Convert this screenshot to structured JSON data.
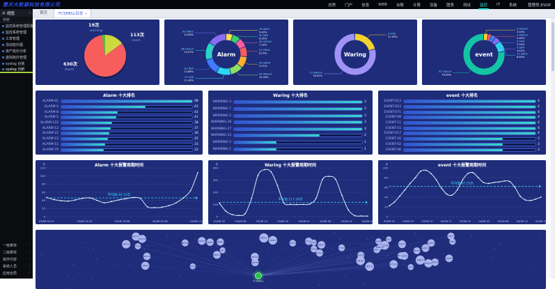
{
  "brand": {
    "logo": "慧天大数据科技有限公司"
  },
  "topnav": {
    "items": [
      "态势",
      "门户",
      "信息",
      "WEB",
      "台账",
      "计算",
      "设备",
      "图表",
      "测试",
      "监控",
      "IT",
      "系统"
    ],
    "active_index": 9,
    "user": "管理员:ESOP"
  },
  "sidebar": {
    "header_label": "视图",
    "search_label": "搜索",
    "items": [
      {
        "label": "监控系统管理配置",
        "active": false
      },
      {
        "label": "监控系统管理",
        "active": false
      },
      {
        "label": "工单管理",
        "active": false
      },
      {
        "label": "活动拓扑图",
        "active": false
      },
      {
        "label": "资产拓扑分析",
        "active": false
      },
      {
        "label": "虚拟拓扑管理",
        "active": false
      },
      {
        "label": "syslog 台账",
        "active": false
      },
      {
        "label": "syslog 分析",
        "active": true
      }
    ],
    "bottom_items": [
      "一级菜单",
      "二级菜单",
      "操作内容",
      "系统人员",
      "应用全局"
    ]
  },
  "tabs": [
    {
      "label": "首页",
      "active": false
    },
    {
      "label": "FCSHELL日志",
      "active": true
    }
  ],
  "chart_data": [
    {
      "type": "pie",
      "title": "日志类型占比",
      "series": [
        {
          "name": "event",
          "label": "113次",
          "value": 113,
          "color": "#ccd93f"
        },
        {
          "name": "Alarm",
          "label": "630次",
          "value": 630,
          "color": "#f85d5d"
        },
        {
          "name": "warning",
          "label": "19次",
          "value": 19,
          "color": "#58c13a"
        }
      ]
    },
    {
      "type": "donut",
      "center_label": "Alarm",
      "segments": [
        {
          "value": 34,
          "name": "AD01",
          "pct": "5.40%",
          "color": "#ffe14d"
        },
        {
          "value": 40,
          "name": "DB2",
          "pct": "6.35%",
          "color": "#37d06a"
        },
        {
          "value": 46,
          "name": "UAS16",
          "pct": "7.30%",
          "color": "#ff5fa2"
        },
        {
          "value": 52,
          "name": "FW01",
          "pct": "8.25%",
          "color": "#f85d5d"
        },
        {
          "value": 58,
          "name": "SW06",
          "pct": "9.21%",
          "color": "#ffb12e"
        },
        {
          "value": 64,
          "name": "WAS10",
          "pct": "10.16%",
          "color": "#8ee05e"
        },
        {
          "value": 72,
          "name": "OA8",
          "pct": "11.43%",
          "color": "#2bd7ee"
        },
        {
          "value": 81,
          "name": "DB4",
          "pct": "12.86%",
          "color": "#3f7bff"
        },
        {
          "value": 88,
          "name": "UAS10",
          "pct": "13.97%",
          "color": "#2ad3c3"
        },
        {
          "value": 95,
          "name": "SW01",
          "pct": "15.08%",
          "color": "#8a6cf0"
        }
      ]
    },
    {
      "type": "donut",
      "center_label": "Waring",
      "segments": [
        {
          "value": 4,
          "name": "OA8",
          "pct": "21.05%",
          "color": "#f3d32b"
        },
        {
          "value": 15,
          "name": "WAS10",
          "pct": "78.95%",
          "color": "#a192f6"
        }
      ]
    },
    {
      "type": "donut",
      "center_label": "event",
      "segments": [
        {
          "value": 4,
          "name": "UAS16",
          "pct": "3.54%",
          "color": "#ffd12d"
        },
        {
          "value": 3,
          "name": "WAS10",
          "pct": "2.65%",
          "color": "#f85d5d"
        },
        {
          "value": 4,
          "name": "OA8",
          "pct": "3.54%",
          "color": "#3f7bff"
        },
        {
          "value": 5,
          "name": "DB4",
          "pct": "4.42%",
          "color": "#8a6cf0"
        },
        {
          "value": 10,
          "name": "SW01",
          "pct": "8.85%",
          "color": "#2bd7ee"
        },
        {
          "value": 87,
          "name": "OAS10",
          "pct": "76.99%",
          "color": "#14c4a4"
        }
      ]
    },
    {
      "type": "bar",
      "title": "Alarm 十大排名",
      "categories": [
        "ALARM-01",
        "ALARM-4",
        "ALARM-8",
        "ALARM-5",
        "ALARM-122",
        "ALARM-12",
        "ALARM-21",
        "ALARM-15",
        "ALARM-11",
        "ALARM-79"
      ],
      "values": [
        98,
        63,
        42,
        41,
        38,
        37,
        36,
        35,
        33,
        32
      ]
    },
    {
      "type": "bar",
      "title": "Waring 十大排名",
      "categories": [
        "WARNING-3",
        "WARNING-7",
        "WARNING-2",
        "WARNING-16",
        "WARNING-17",
        "WARNING-12",
        "WARNING-5",
        "WARNING-1"
      ],
      "values": [
        3,
        3,
        3,
        3,
        3,
        2,
        1,
        1
      ]
    },
    {
      "type": "bar",
      "title": "event 十大排名",
      "categories": [
        "EVENT-013",
        "EVENT-014",
        "EVENT-071",
        "EVENT-08",
        "EVENT-11",
        "EVENT-15",
        "EVENT-017",
        "EVENT-20",
        "EVENT-02",
        "EVENT-06"
      ],
      "values": [
        4,
        4,
        4,
        4,
        4,
        4,
        4,
        3,
        3,
        3
      ]
    },
    {
      "type": "line",
      "title": "Alarm 十大报警周期时间",
      "ylim": [
        0,
        120
      ],
      "ystep": 20,
      "avg": 46.12,
      "avg_label": "平均值:46.12次",
      "unit": "次",
      "x_labels": [
        "03/08 02:11",
        "03/08 10:24",
        "03/08 18:36",
        "04/08 02:48",
        "04/08 11:02"
      ],
      "values": [
        47,
        42,
        39,
        38,
        41,
        45,
        46,
        40,
        34,
        37,
        41,
        44,
        47,
        45,
        24,
        22,
        23,
        27,
        34,
        46,
        64,
        108
      ]
    },
    {
      "type": "line",
      "title": "Waring 十大报警周期时间",
      "ylim": [
        0,
        400
      ],
      "ystep": 100,
      "avg": 117.28,
      "avg_label": "平均值:117.28次",
      "unit": "次",
      "x_labels": [
        "03/08 02",
        "03/08 08",
        "03/08 14",
        "03/08 20",
        "04/08 02",
        "04/08 08",
        "04/08 14",
        "04/08 20"
      ],
      "values": [
        110,
        45,
        16,
        10,
        24,
        150,
        340,
        385,
        368,
        255,
        112,
        100,
        99,
        100,
        103,
        150,
        305,
        330,
        308,
        175,
        55,
        8,
        5,
        4
      ]
    },
    {
      "type": "line",
      "title": "event 十大报警周期时间",
      "ylim": [
        0,
        100
      ],
      "ystep": 20,
      "avg": 62.15,
      "avg_label": "平均值:62.15次",
      "unit": "次",
      "x_labels": [
        "03/08 02",
        "03/08 07",
        "03/08 12",
        "03/08 17",
        "03/08 22",
        "04/08 03",
        "04/08 08",
        "04/08 13",
        "04/08 18"
      ],
      "values": [
        22,
        30,
        42,
        55,
        68,
        80,
        93,
        95,
        88,
        75,
        58,
        46,
        44,
        55,
        75,
        88,
        90,
        80,
        70,
        68,
        70,
        71,
        73,
        72,
        60,
        42,
        34,
        33,
        36,
        40
      ]
    },
    {
      "type": "network",
      "root_label": "FCSHELL",
      "root_color": "#27c24c",
      "node_labels": [
        "SW-01",
        "SW-06",
        "OA-8",
        "DB-4",
        "DB-2",
        "UAS-10",
        "UAS-16",
        "WAS-10",
        "FW-01",
        "AD-01",
        "NE-40",
        "EVT-013",
        "EVT-014",
        "EVT-071",
        "EVT-08",
        "EVT-11",
        "EVT-15",
        "EVT-17",
        "EVT-20",
        "EVT-02",
        "EVT-06",
        "ALM-01",
        "ALM-4",
        "ALM-8",
        "ALM-5",
        "ALM-122",
        "ALM-12",
        "ALM-21",
        "ALM-15",
        "ALM-11",
        "ALM-79",
        "WRN-3",
        "WRN-7",
        "WRN-2",
        "WRN-16",
        "WRN-17",
        "WRN-12",
        "WRN-5",
        "WRN-1",
        "SRV-02",
        "SRV-09",
        "APP-31",
        "APP-07",
        "NET-12",
        "NET-05",
        "LOG-01"
      ]
    }
  ],
  "colors": {
    "panel_bg": "#1e2c7a",
    "accent_cyan": "#35e7e7",
    "avg_line": "#3fd9ff",
    "bar_gradient_start": "#2e54d4",
    "bar_gradient_end": "#38d8cb",
    "active_underline": "#a7cf3a"
  }
}
